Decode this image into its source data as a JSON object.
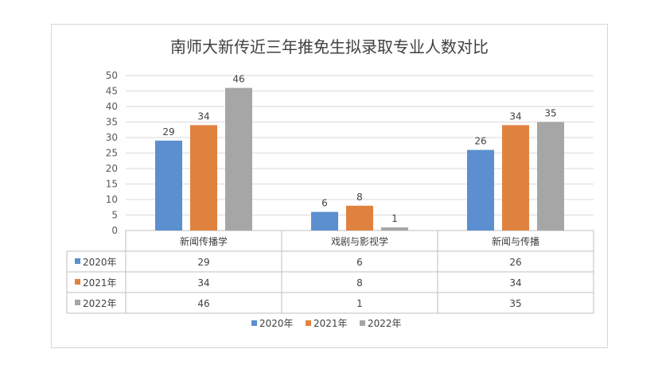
{
  "chart_data": {
    "type": "bar",
    "title": "南师大新传近三年推免生拟录取专业人数对比",
    "categories": [
      "新闻传播学",
      "戏剧与影视学",
      "新闻与传播"
    ],
    "series": [
      {
        "name": "2020年",
        "values": [
          29,
          6,
          26
        ],
        "color": "#5b8fd0"
      },
      {
        "name": "2021年",
        "values": [
          34,
          8,
          34
        ],
        "color": "#e0823f"
      },
      {
        "name": "2022年",
        "values": [
          46,
          1,
          35
        ],
        "color": "#a6a6a6"
      }
    ],
    "ylim": [
      0,
      50
    ],
    "yticks": [
      0,
      5,
      10,
      15,
      20,
      25,
      30,
      35,
      40,
      45,
      50
    ],
    "grid": true,
    "data_table": true,
    "legend": "bottom"
  }
}
